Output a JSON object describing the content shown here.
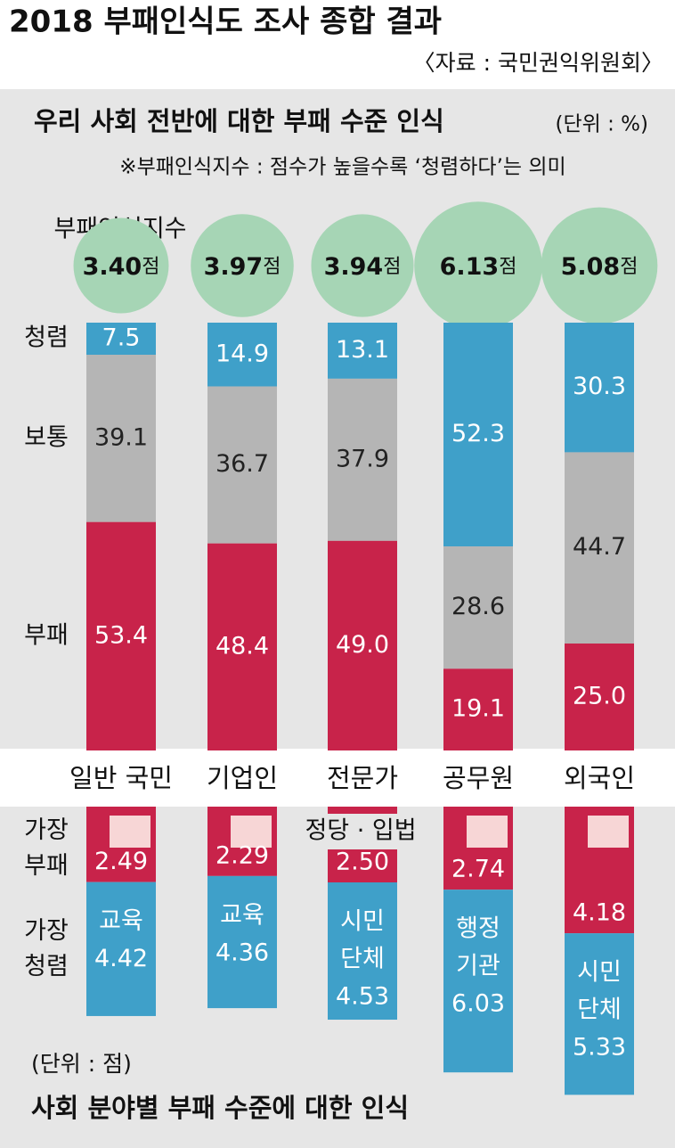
{
  "title": "2018 부패인식도 조사 종합 결과",
  "source": "〈자료 : 국민권익위원회〉",
  "chart_data": [
    {
      "type": "stacked-bar",
      "title": "우리 사회 전반에 대한 부패 수준 인식",
      "unit": "(단위 : %)",
      "note": "※부패인식지수 : 점수가 높을수록 ‘청렴하다’는 의미",
      "index_label": "부패인식지수",
      "index_values": [
        3.4,
        3.97,
        3.94,
        6.13,
        5.08
      ],
      "index_value_labels": [
        "3.40",
        "3.97",
        "3.94",
        "6.13",
        "5.08"
      ],
      "index_unit": "점",
      "index_color": "#a6d5b5",
      "categories": [
        "일반 국민",
        "기업인",
        "전문가",
        "공무원",
        "외국인"
      ],
      "series": [
        {
          "name": "청렴",
          "color": "#3fa0c9",
          "values": [
            7.5,
            14.9,
            13.1,
            52.3,
            30.3
          ],
          "value_labels": [
            "7.5",
            "14.9",
            "13.1",
            "52.3",
            "30.3"
          ]
        },
        {
          "name": "보통",
          "color": "#b5b5b5",
          "values": [
            39.1,
            36.7,
            37.9,
            28.6,
            44.7
          ],
          "value_labels": [
            "39.1",
            "36.7",
            "37.9",
            "28.6",
            "44.7"
          ]
        },
        {
          "name": "부패",
          "color": "#c8234a",
          "values": [
            53.4,
            48.4,
            49,
            19.1,
            25
          ],
          "value_labels": [
            "53.4",
            "48.4",
            "49.0",
            "19.1",
            "25.0"
          ]
        }
      ]
    },
    {
      "type": "field-bar",
      "title": "사회 분야별 부패 수준에 대한 인식",
      "unit": "(단위 : 점)",
      "series": [
        {
          "name": "가장 부패",
          "color": "#c8234a",
          "field": "정당 · 입법",
          "field_color": "#f7d6d6",
          "values": [
            2.49,
            2.29,
            2.5,
            2.74,
            4.18
          ],
          "value_labels": [
            "2.49",
            "2.29",
            "2.50",
            "2.74",
            "4.18"
          ]
        },
        {
          "name": "가장 청렴",
          "color": "#3fa0c9",
          "fields": [
            [
              "교육"
            ],
            [
              "교육"
            ],
            [
              "시민",
              "단체"
            ],
            [
              "행정",
              "기관"
            ],
            [
              "시민",
              "단체"
            ]
          ],
          "values": [
            4.42,
            4.36,
            4.53,
            6.03,
            5.33
          ],
          "value_labels": [
            "4.42",
            "4.36",
            "4.53",
            "6.03",
            "5.33"
          ]
        }
      ]
    }
  ]
}
